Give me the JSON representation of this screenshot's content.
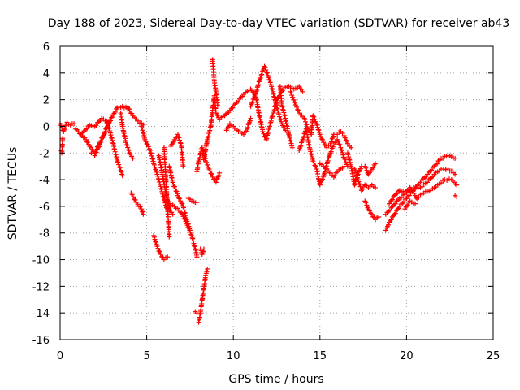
{
  "chart_data": {
    "type": "scatter",
    "title": "Day 188 of 2023, Sidereal Day-to-day VTEC variation (SDTVAR) for receiver ab43",
    "xlabel": "GPS time / hours",
    "ylabel": "SDTVAR / TECUs",
    "xlim": [
      0,
      25
    ],
    "ylim": [
      -16,
      6
    ],
    "xticks": [
      0,
      5,
      10,
      15,
      20,
      25
    ],
    "yticks": [
      -16,
      -14,
      -12,
      -10,
      -8,
      -6,
      -4,
      -2,
      0,
      2,
      4,
      6
    ],
    "grid": true,
    "marker": "+",
    "color": "#ff0000",
    "series": [
      {
        "name": "SDTVAR",
        "tracks": [
          [
            [
              0.0,
              0.2
            ],
            [
              0.2,
              -0.4
            ],
            [
              0.4,
              0.3
            ],
            [
              0.6,
              0.1
            ],
            [
              0.8,
              0.2
            ]
          ],
          [
            [
              0.0,
              -1.8
            ],
            [
              0.1,
              -2.0
            ],
            [
              0.15,
              -0.9
            ]
          ],
          [
            [
              0.9,
              -0.2
            ],
            [
              1.2,
              -0.6
            ],
            [
              1.5,
              -1.0
            ],
            [
              1.7,
              -1.5
            ],
            [
              2.0,
              -2.0
            ],
            [
              2.3,
              -1.2
            ],
            [
              2.6,
              -0.4
            ],
            [
              3.0,
              0.7
            ],
            [
              3.3,
              1.4
            ],
            [
              3.6,
              1.5
            ],
            [
              4.0,
              1.3
            ]
          ],
          [
            [
              1.3,
              -0.5
            ],
            [
              1.7,
              0.1
            ],
            [
              2.0,
              0.0
            ],
            [
              2.4,
              0.6
            ],
            [
              2.8,
              0.2
            ]
          ],
          [
            [
              1.8,
              -2.0
            ],
            [
              2.0,
              -2.2
            ],
            [
              2.2,
              -1.6
            ],
            [
              2.5,
              -0.8
            ],
            [
              2.8,
              0.3
            ]
          ],
          [
            [
              2.7,
              0.4
            ],
            [
              2.9,
              -0.5
            ],
            [
              3.1,
              -1.5
            ],
            [
              3.3,
              -2.6
            ],
            [
              3.5,
              -3.3
            ],
            [
              3.6,
              -3.7
            ]
          ],
          [
            [
              3.5,
              1.0
            ],
            [
              3.6,
              0.0
            ],
            [
              3.8,
              -1.2
            ],
            [
              4.0,
              -2.0
            ],
            [
              4.2,
              -2.4
            ]
          ],
          [
            [
              3.9,
              1.4
            ],
            [
              4.2,
              0.8
            ],
            [
              4.5,
              0.4
            ],
            [
              4.8,
              0.1
            ]
          ],
          [
            [
              4.1,
              -5.0
            ],
            [
              4.4,
              -5.7
            ],
            [
              4.7,
              -6.2
            ],
            [
              4.8,
              -6.6
            ]
          ],
          [
            [
              4.7,
              0.0
            ],
            [
              4.9,
              -1.0
            ],
            [
              5.2,
              -1.8
            ],
            [
              5.4,
              -2.8
            ],
            [
              5.6,
              -3.6
            ],
            [
              5.8,
              -4.5
            ],
            [
              6.0,
              -5.5
            ],
            [
              6.2,
              -6.3
            ],
            [
              6.4,
              -5.8
            ],
            [
              6.6,
              -6.0
            ],
            [
              7.0,
              -6.5
            ],
            [
              7.3,
              -7.3
            ],
            [
              7.6,
              -8.2
            ],
            [
              7.8,
              -9.2
            ],
            [
              7.9,
              -9.8
            ]
          ],
          [
            [
              5.4,
              -8.2
            ],
            [
              5.6,
              -9.0
            ],
            [
              5.8,
              -9.6
            ],
            [
              6.0,
              -10.0
            ],
            [
              6.2,
              -9.8
            ]
          ],
          [
            [
              5.7,
              -2.2
            ],
            [
              5.9,
              -3.6
            ],
            [
              6.1,
              -5.0
            ],
            [
              6.3,
              -6.2
            ],
            [
              6.5,
              -6.6
            ]
          ],
          [
            [
              6.0,
              -1.6
            ],
            [
              6.1,
              -3.8
            ],
            [
              6.2,
              -6.0
            ],
            [
              6.3,
              -8.3
            ]
          ],
          [
            [
              6.3,
              -3.0
            ],
            [
              6.5,
              -4.2
            ],
            [
              6.8,
              -5.2
            ],
            [
              7.1,
              -6.0
            ],
            [
              7.3,
              -7.0
            ],
            [
              7.5,
              -7.8
            ]
          ],
          [
            [
              6.4,
              -1.5
            ],
            [
              6.6,
              -1.0
            ],
            [
              6.8,
              -0.6
            ],
            [
              7.0,
              -1.5
            ],
            [
              7.1,
              -3.0
            ]
          ],
          [
            [
              7.4,
              -5.4
            ],
            [
              7.6,
              -5.6
            ],
            [
              7.9,
              -5.7
            ]
          ],
          [
            [
              7.8,
              -13.9
            ],
            [
              7.9,
              -14.0
            ]
          ],
          [
            [
              8.0,
              -14.7
            ],
            [
              8.1,
              -14.0
            ],
            [
              8.2,
              -13.0
            ],
            [
              8.3,
              -12.2
            ],
            [
              8.4,
              -11.2
            ],
            [
              8.5,
              -10.7
            ]
          ],
          [
            [
              8.1,
              -9.2
            ],
            [
              8.2,
              -9.6
            ],
            [
              8.3,
              -9.2
            ]
          ],
          [
            [
              7.9,
              -3.4
            ],
            [
              8.0,
              -2.6
            ],
            [
              8.2,
              -1.6
            ],
            [
              8.4,
              -2.6
            ],
            [
              8.6,
              -3.2
            ],
            [
              8.8,
              -3.8
            ],
            [
              9.0,
              -4.2
            ],
            [
              9.2,
              -3.5
            ]
          ],
          [
            [
              8.3,
              -2.5
            ],
            [
              8.5,
              -1.0
            ],
            [
              8.7,
              0.0
            ],
            [
              8.8,
              1.2
            ],
            [
              8.9,
              2.3
            ],
            [
              9.0,
              1.0
            ],
            [
              9.2,
              0.5
            ],
            [
              9.5,
              0.8
            ],
            [
              9.8,
              1.2
            ],
            [
              10.2,
              1.8
            ],
            [
              10.6,
              2.4
            ],
            [
              11.0,
              2.8
            ],
            [
              11.3,
              2.2
            ],
            [
              11.5,
              0.8
            ],
            [
              11.6,
              0.2
            ]
          ],
          [
            [
              8.8,
              5.0
            ],
            [
              8.9,
              3.4
            ],
            [
              9.0,
              2.6
            ],
            [
              9.1,
              1.6
            ]
          ],
          [
            [
              9.6,
              -0.3
            ],
            [
              9.8,
              0.2
            ],
            [
              10.0,
              0.0
            ],
            [
              10.3,
              -0.4
            ],
            [
              10.6,
              -0.6
            ],
            [
              10.8,
              -0.2
            ],
            [
              11.0,
              0.6
            ]
          ],
          [
            [
              11.0,
              1.5
            ],
            [
              11.3,
              2.5
            ],
            [
              11.6,
              3.8
            ],
            [
              11.8,
              4.5
            ],
            [
              12.0,
              3.8
            ],
            [
              12.2,
              3.0
            ],
            [
              12.4,
              2.0
            ],
            [
              12.6,
              1.0
            ],
            [
              12.8,
              0.2
            ],
            [
              13.0,
              -0.3
            ]
          ],
          [
            [
              11.5,
              0.8
            ],
            [
              11.7,
              -0.4
            ],
            [
              11.9,
              -1.0
            ],
            [
              12.1,
              0.0
            ],
            [
              12.3,
              1.0
            ],
            [
              12.6,
              2.2
            ],
            [
              12.9,
              2.8
            ],
            [
              13.2,
              3.0
            ],
            [
              13.5,
              2.8
            ],
            [
              13.8,
              3.0
            ],
            [
              14.0,
              2.6
            ]
          ],
          [
            [
              12.7,
              3.0
            ],
            [
              12.8,
              1.6
            ],
            [
              13.0,
              0.6
            ],
            [
              13.2,
              -0.6
            ],
            [
              13.4,
              -1.6
            ]
          ],
          [
            [
              13.3,
              2.6
            ],
            [
              13.6,
              1.6
            ],
            [
              13.8,
              1.0
            ],
            [
              14.1,
              0.6
            ],
            [
              14.3,
              -0.2
            ],
            [
              14.5,
              -0.6
            ],
            [
              14.6,
              0.8
            ],
            [
              14.8,
              0.2
            ],
            [
              15.0,
              -0.6
            ],
            [
              15.2,
              -1.2
            ],
            [
              15.4,
              -1.6
            ],
            [
              15.6,
              -1.4
            ],
            [
              15.8,
              -0.6
            ],
            [
              16.0,
              -0.6
            ],
            [
              16.2,
              -0.4
            ],
            [
              16.4,
              -0.7
            ],
            [
              16.6,
              -1.3
            ],
            [
              16.8,
              -1.6
            ]
          ],
          [
            [
              13.8,
              -1.8
            ],
            [
              14.0,
              -1.0
            ],
            [
              14.2,
              -0.2
            ],
            [
              14.4,
              -1.6
            ],
            [
              14.6,
              -2.6
            ],
            [
              14.8,
              -3.2
            ],
            [
              15.0,
              -4.4
            ],
            [
              15.2,
              -3.8
            ],
            [
              15.4,
              -2.8
            ],
            [
              15.6,
              -2.0
            ],
            [
              15.8,
              -1.4
            ],
            [
              16.0,
              -1.0
            ],
            [
              16.2,
              -1.6
            ],
            [
              16.4,
              -2.4
            ],
            [
              16.6,
              -3.0
            ]
          ],
          [
            [
              15.0,
              -2.8
            ],
            [
              15.4,
              -3.2
            ],
            [
              15.8,
              -3.8
            ],
            [
              16.0,
              -3.4
            ],
            [
              16.4,
              -3.0
            ]
          ],
          [
            [
              16.6,
              -2.0
            ],
            [
              16.8,
              -3.0
            ],
            [
              17.0,
              -4.4
            ],
            [
              17.2,
              -3.6
            ],
            [
              17.4,
              -3.0
            ]
          ],
          [
            [
              17.0,
              -3.2
            ],
            [
              17.2,
              -4.0
            ],
            [
              17.4,
              -4.8
            ],
            [
              17.6,
              -4.4
            ],
            [
              17.8,
              -4.6
            ],
            [
              18.0,
              -4.4
            ],
            [
              18.2,
              -4.6
            ]
          ],
          [
            [
              17.6,
              -5.6
            ],
            [
              17.8,
              -6.2
            ],
            [
              18.0,
              -6.6
            ],
            [
              18.2,
              -7.0
            ],
            [
              18.4,
              -6.8
            ]
          ],
          [
            [
              17.6,
              -3.0
            ],
            [
              17.8,
              -3.6
            ],
            [
              18.0,
              -3.2
            ],
            [
              18.2,
              -2.8
            ]
          ],
          [
            [
              18.8,
              -7.8
            ],
            [
              19.0,
              -7.2
            ],
            [
              19.3,
              -6.6
            ],
            [
              19.6,
              -6.0
            ],
            [
              20.0,
              -5.4
            ],
            [
              20.4,
              -4.8
            ],
            [
              20.8,
              -4.2
            ],
            [
              21.2,
              -3.6
            ],
            [
              21.6,
              -3.0
            ],
            [
              22.0,
              -2.4
            ],
            [
              22.4,
              -2.2
            ],
            [
              22.8,
              -2.4
            ]
          ],
          [
            [
              18.8,
              -6.6
            ],
            [
              19.2,
              -6.0
            ],
            [
              19.6,
              -5.4
            ],
            [
              20.0,
              -5.0
            ],
            [
              20.4,
              -4.6
            ],
            [
              20.8,
              -4.6
            ],
            [
              21.2,
              -4.2
            ],
            [
              21.6,
              -3.6
            ],
            [
              22.0,
              -3.2
            ],
            [
              22.4,
              -3.2
            ],
            [
              22.8,
              -3.6
            ]
          ],
          [
            [
              19.0,
              -5.8
            ],
            [
              19.3,
              -5.2
            ],
            [
              19.6,
              -4.8
            ],
            [
              19.9,
              -5.0
            ],
            [
              20.2,
              -4.6
            ],
            [
              20.6,
              -5.4
            ],
            [
              21.0,
              -5.0
            ],
            [
              21.4,
              -4.8
            ],
            [
              21.8,
              -4.4
            ],
            [
              22.2,
              -4.0
            ],
            [
              22.6,
              -4.0
            ],
            [
              22.9,
              -4.4
            ]
          ],
          [
            [
              19.9,
              -6.2
            ],
            [
              20.2,
              -5.6
            ],
            [
              20.5,
              -5.8
            ]
          ],
          [
            [
              22.8,
              -5.2
            ],
            [
              22.9,
              -5.3
            ]
          ]
        ]
      }
    ]
  }
}
